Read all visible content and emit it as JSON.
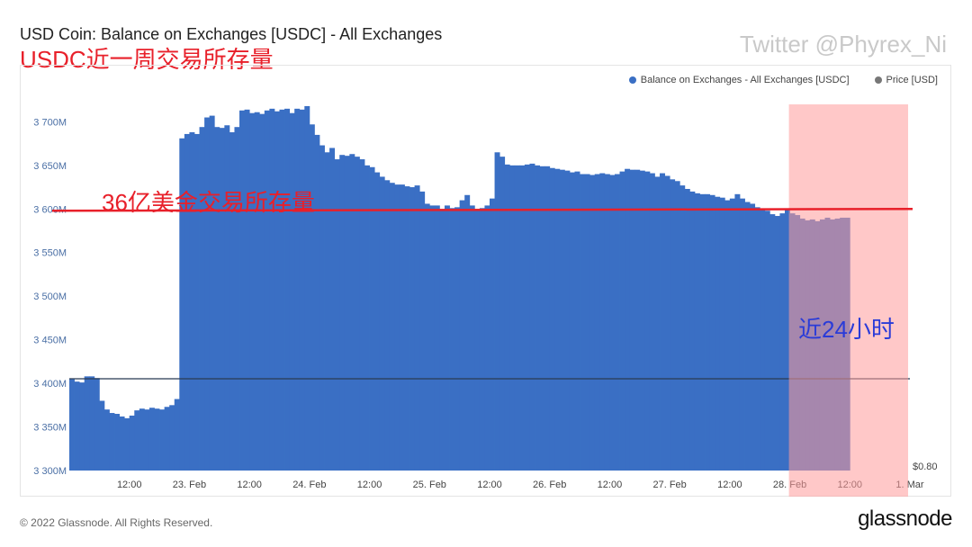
{
  "header": {
    "title": "USD Coin: Balance on Exchanges [USDC] - All Exchanges",
    "subtitle_cn": "USDC近一周交易所存量",
    "watermark": "Twitter @Phyrex_Ni"
  },
  "annotations": {
    "line_label": "36亿美金交易所存量",
    "highlight_label": "近24小时"
  },
  "footer": {
    "copyright": "© 2022 Glassnode. All Rights Reserved.",
    "logo": "glassnode"
  },
  "colors": {
    "bar": "#3a6fc4",
    "price_line": "#2b3d55",
    "annotation_red": "#e8202a",
    "highlight_fill": "#ff9a9a",
    "annotation_blue": "#2a3bd8"
  },
  "chart_data": {
    "type": "bar",
    "title": "USD Coin: Balance on Exchanges [USDC] - All Exchanges",
    "legend": [
      {
        "name": "Balance on Exchanges - All Exchanges [USDC]",
        "color": "#3a6fc4"
      },
      {
        "name": "Price [USD]",
        "color": "#777777"
      }
    ],
    "legend_position": "top-right",
    "x_tick_labels": [
      "12:00",
      "23. Feb",
      "12:00",
      "24. Feb",
      "12:00",
      "25. Feb",
      "12:00",
      "26. Feb",
      "12:00",
      "27. Feb",
      "12:00",
      "28. Feb",
      "12:00",
      "1. Mar"
    ],
    "y_tick_labels": [
      "3 300M",
      "3 350M",
      "3 400M",
      "3 450M",
      "3 500M",
      "3 550M",
      "3 600M",
      "3 650M",
      "3 700M"
    ],
    "ylim": [
      3300,
      3720
    ],
    "y_unit": "M USDC",
    "right_axis_label": "$0.80",
    "reference_line": {
      "value": 3600,
      "label": "36亿美金交易所存量"
    },
    "highlight_window": {
      "from_hour": 144,
      "to_hour": 168,
      "label": "近24小时"
    },
    "x_start_label": "22. Feb 00:00",
    "x_step_hours": 1,
    "balance_hourly": [
      3405,
      3402,
      3401,
      3408,
      3408,
      3406,
      3380,
      3370,
      3366,
      3365,
      3362,
      3360,
      3363,
      3369,
      3371,
      3370,
      3372,
      3371,
      3370,
      3373,
      3375,
      3382,
      3681,
      3686,
      3688,
      3686,
      3694,
      3705,
      3707,
      3694,
      3693,
      3696,
      3688,
      3694,
      3713,
      3714,
      3710,
      3711,
      3709,
      3713,
      3715,
      3712,
      3714,
      3715,
      3710,
      3715,
      3714,
      3718,
      3697,
      3685,
      3673,
      3665,
      3670,
      3657,
      3662,
      3661,
      3663,
      3660,
      3657,
      3650,
      3648,
      3642,
      3637,
      3633,
      3630,
      3628,
      3628,
      3626,
      3625,
      3627,
      3620,
      3606,
      3604,
      3604,
      3600,
      3604,
      3601,
      3602,
      3610,
      3616,
      3604,
      3600,
      3601,
      3604,
      3612,
      3665,
      3660,
      3651,
      3650,
      3650,
      3650,
      3651,
      3652,
      3650,
      3649,
      3649,
      3647,
      3646,
      3645,
      3644,
      3642,
      3643,
      3640,
      3640,
      3639,
      3640,
      3641,
      3640,
      3639,
      3640,
      3643,
      3646,
      3645,
      3645,
      3644,
      3643,
      3641,
      3637,
      3641,
      3638,
      3634,
      3632,
      3627,
      3623,
      3620,
      3618,
      3617,
      3617,
      3616,
      3614,
      3613,
      3610,
      3612,
      3617,
      3612,
      3608,
      3606,
      3602,
      3600,
      3598,
      3594,
      3592,
      3595,
      3600,
      3595,
      3593,
      3589,
      3587,
      3588,
      3586,
      3588,
      3590,
      3588,
      3589,
      3590,
      3590
    ],
    "price_usd_hourly_note": "flat at ~1.00"
  }
}
